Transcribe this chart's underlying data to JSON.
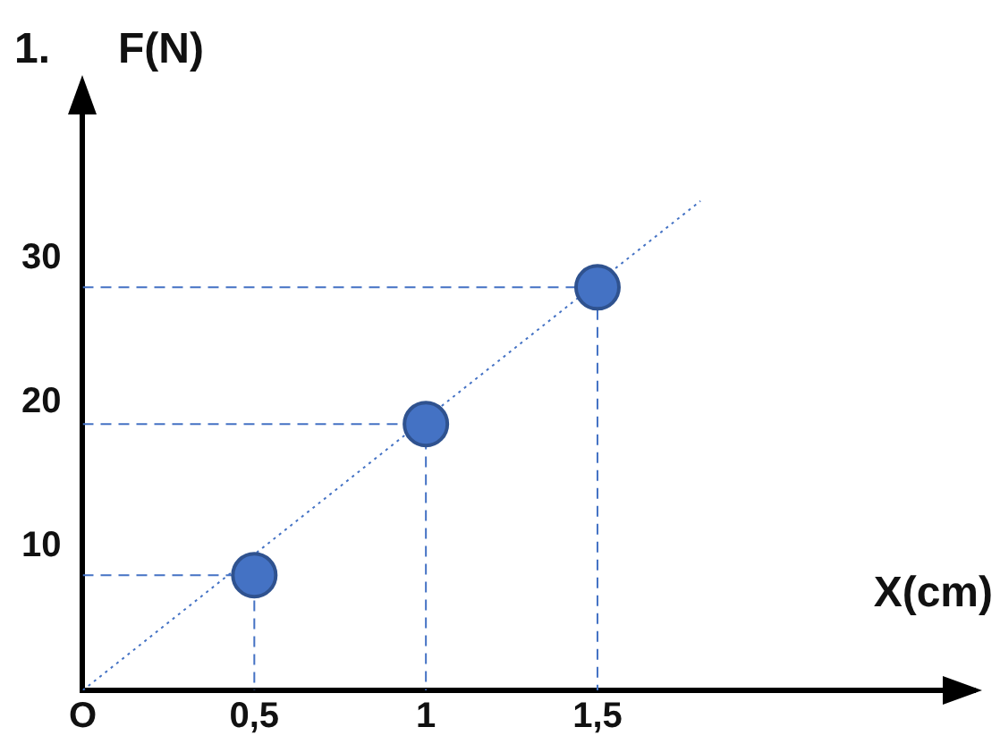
{
  "chart_data": {
    "type": "scatter",
    "title": "1.",
    "ylabel": "F(N)",
    "xlabel": "X(cm)",
    "xlim": [
      0,
      2.6
    ],
    "ylim": [
      0,
      42
    ],
    "xticks": [
      {
        "value": 0,
        "label": "O"
      },
      {
        "value": 0.5,
        "label": "0,5"
      },
      1,
      {
        "value": 1.5,
        "label": "1,5"
      }
    ],
    "yticks": [
      10,
      20,
      30
    ],
    "grid": false,
    "legend": false,
    "marker": "circle",
    "series": [
      {
        "type": "scatter",
        "color": "#4472c4",
        "x": [
          0.5,
          1,
          1.5
        ],
        "values": [
          8,
          18.5,
          28
        ]
      },
      {
        "type": "line",
        "color": "#4472c4",
        "line_style": "dotted",
        "marker": "none",
        "x": [
          0,
          1.8
        ],
        "values": [
          0,
          34
        ]
      },
      {
        "type": "line",
        "color": "#4472c4",
        "line_style": "dashed",
        "marker": "none",
        "x": [
          0,
          0.5,
          0.5
        ],
        "values": [
          8,
          8,
          0
        ]
      },
      {
        "type": "line",
        "color": "#4472c4",
        "line_style": "dashed",
        "marker": "none",
        "x": [
          0,
          1,
          1
        ],
        "values": [
          18.5,
          18.5,
          0
        ]
      },
      {
        "type": "line",
        "color": "#4472c4",
        "line_style": "dashed",
        "marker": "none",
        "x": [
          0,
          1.5,
          1.5
        ],
        "values": [
          28,
          28,
          0
        ]
      }
    ]
  }
}
